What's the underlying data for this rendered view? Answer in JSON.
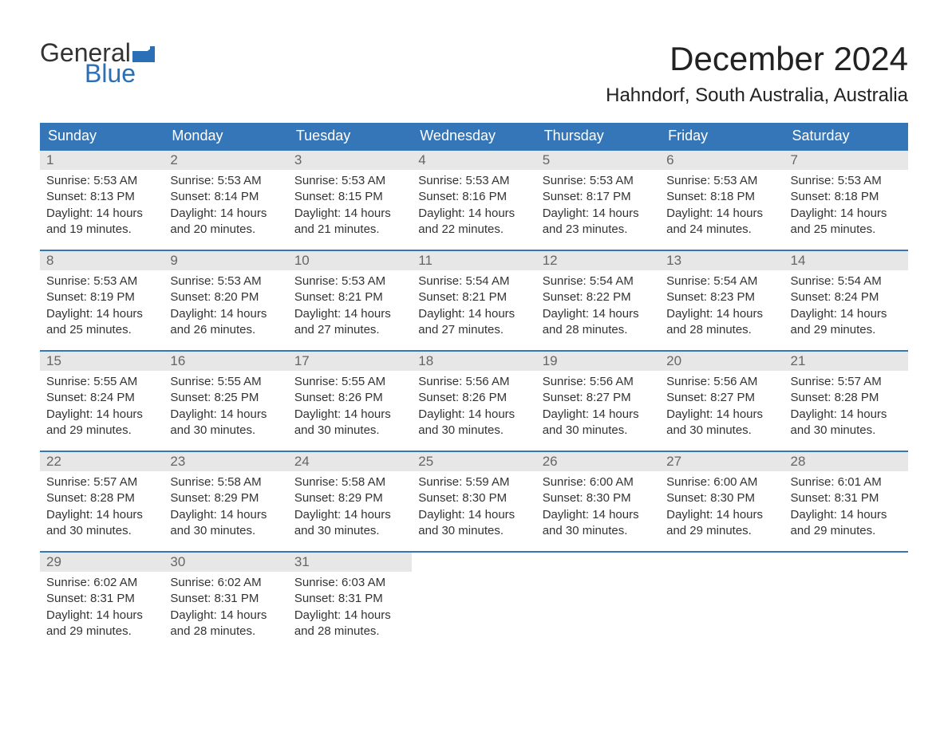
{
  "brand": {
    "word1": "General",
    "word2": "Blue",
    "word1_color": "#333333",
    "word2_color": "#2b6fb6",
    "flag_color": "#2b6fb6"
  },
  "header": {
    "month_title": "December 2024",
    "location": "Hahndorf, South Australia, Australia"
  },
  "styling": {
    "background_color": "#ffffff",
    "header_bar_color": "#3476b8",
    "header_bar_text_color": "#ffffff",
    "daynum_bg_color": "#e7e7e7",
    "daynum_text_color": "#666666",
    "body_text_color": "#333333",
    "week_separator_color": "#3476b8",
    "month_title_fontsize": 42,
    "location_fontsize": 24,
    "weekday_fontsize": 18,
    "daynum_fontsize": 17,
    "body_fontsize": 15
  },
  "weekdays": [
    "Sunday",
    "Monday",
    "Tuesday",
    "Wednesday",
    "Thursday",
    "Friday",
    "Saturday"
  ],
  "labels": {
    "sunrise": "Sunrise:",
    "sunset": "Sunset:",
    "daylight_prefix": "Daylight:"
  },
  "weeks": [
    [
      {
        "day": 1,
        "sunrise": "5:53 AM",
        "sunset": "8:13 PM",
        "daylight": "14 hours and 19 minutes."
      },
      {
        "day": 2,
        "sunrise": "5:53 AM",
        "sunset": "8:14 PM",
        "daylight": "14 hours and 20 minutes."
      },
      {
        "day": 3,
        "sunrise": "5:53 AM",
        "sunset": "8:15 PM",
        "daylight": "14 hours and 21 minutes."
      },
      {
        "day": 4,
        "sunrise": "5:53 AM",
        "sunset": "8:16 PM",
        "daylight": "14 hours and 22 minutes."
      },
      {
        "day": 5,
        "sunrise": "5:53 AM",
        "sunset": "8:17 PM",
        "daylight": "14 hours and 23 minutes."
      },
      {
        "day": 6,
        "sunrise": "5:53 AM",
        "sunset": "8:18 PM",
        "daylight": "14 hours and 24 minutes."
      },
      {
        "day": 7,
        "sunrise": "5:53 AM",
        "sunset": "8:18 PM",
        "daylight": "14 hours and 25 minutes."
      }
    ],
    [
      {
        "day": 8,
        "sunrise": "5:53 AM",
        "sunset": "8:19 PM",
        "daylight": "14 hours and 25 minutes."
      },
      {
        "day": 9,
        "sunrise": "5:53 AM",
        "sunset": "8:20 PM",
        "daylight": "14 hours and 26 minutes."
      },
      {
        "day": 10,
        "sunrise": "5:53 AM",
        "sunset": "8:21 PM",
        "daylight": "14 hours and 27 minutes."
      },
      {
        "day": 11,
        "sunrise": "5:54 AM",
        "sunset": "8:21 PM",
        "daylight": "14 hours and 27 minutes."
      },
      {
        "day": 12,
        "sunrise": "5:54 AM",
        "sunset": "8:22 PM",
        "daylight": "14 hours and 28 minutes."
      },
      {
        "day": 13,
        "sunrise": "5:54 AM",
        "sunset": "8:23 PM",
        "daylight": "14 hours and 28 minutes."
      },
      {
        "day": 14,
        "sunrise": "5:54 AM",
        "sunset": "8:24 PM",
        "daylight": "14 hours and 29 minutes."
      }
    ],
    [
      {
        "day": 15,
        "sunrise": "5:55 AM",
        "sunset": "8:24 PM",
        "daylight": "14 hours and 29 minutes."
      },
      {
        "day": 16,
        "sunrise": "5:55 AM",
        "sunset": "8:25 PM",
        "daylight": "14 hours and 30 minutes."
      },
      {
        "day": 17,
        "sunrise": "5:55 AM",
        "sunset": "8:26 PM",
        "daylight": "14 hours and 30 minutes."
      },
      {
        "day": 18,
        "sunrise": "5:56 AM",
        "sunset": "8:26 PM",
        "daylight": "14 hours and 30 minutes."
      },
      {
        "day": 19,
        "sunrise": "5:56 AM",
        "sunset": "8:27 PM",
        "daylight": "14 hours and 30 minutes."
      },
      {
        "day": 20,
        "sunrise": "5:56 AM",
        "sunset": "8:27 PM",
        "daylight": "14 hours and 30 minutes."
      },
      {
        "day": 21,
        "sunrise": "5:57 AM",
        "sunset": "8:28 PM",
        "daylight": "14 hours and 30 minutes."
      }
    ],
    [
      {
        "day": 22,
        "sunrise": "5:57 AM",
        "sunset": "8:28 PM",
        "daylight": "14 hours and 30 minutes."
      },
      {
        "day": 23,
        "sunrise": "5:58 AM",
        "sunset": "8:29 PM",
        "daylight": "14 hours and 30 minutes."
      },
      {
        "day": 24,
        "sunrise": "5:58 AM",
        "sunset": "8:29 PM",
        "daylight": "14 hours and 30 minutes."
      },
      {
        "day": 25,
        "sunrise": "5:59 AM",
        "sunset": "8:30 PM",
        "daylight": "14 hours and 30 minutes."
      },
      {
        "day": 26,
        "sunrise": "6:00 AM",
        "sunset": "8:30 PM",
        "daylight": "14 hours and 30 minutes."
      },
      {
        "day": 27,
        "sunrise": "6:00 AM",
        "sunset": "8:30 PM",
        "daylight": "14 hours and 29 minutes."
      },
      {
        "day": 28,
        "sunrise": "6:01 AM",
        "sunset": "8:31 PM",
        "daylight": "14 hours and 29 minutes."
      }
    ],
    [
      {
        "day": 29,
        "sunrise": "6:02 AM",
        "sunset": "8:31 PM",
        "daylight": "14 hours and 29 minutes."
      },
      {
        "day": 30,
        "sunrise": "6:02 AM",
        "sunset": "8:31 PM",
        "daylight": "14 hours and 28 minutes."
      },
      {
        "day": 31,
        "sunrise": "6:03 AM",
        "sunset": "8:31 PM",
        "daylight": "14 hours and 28 minutes."
      },
      null,
      null,
      null,
      null
    ]
  ]
}
